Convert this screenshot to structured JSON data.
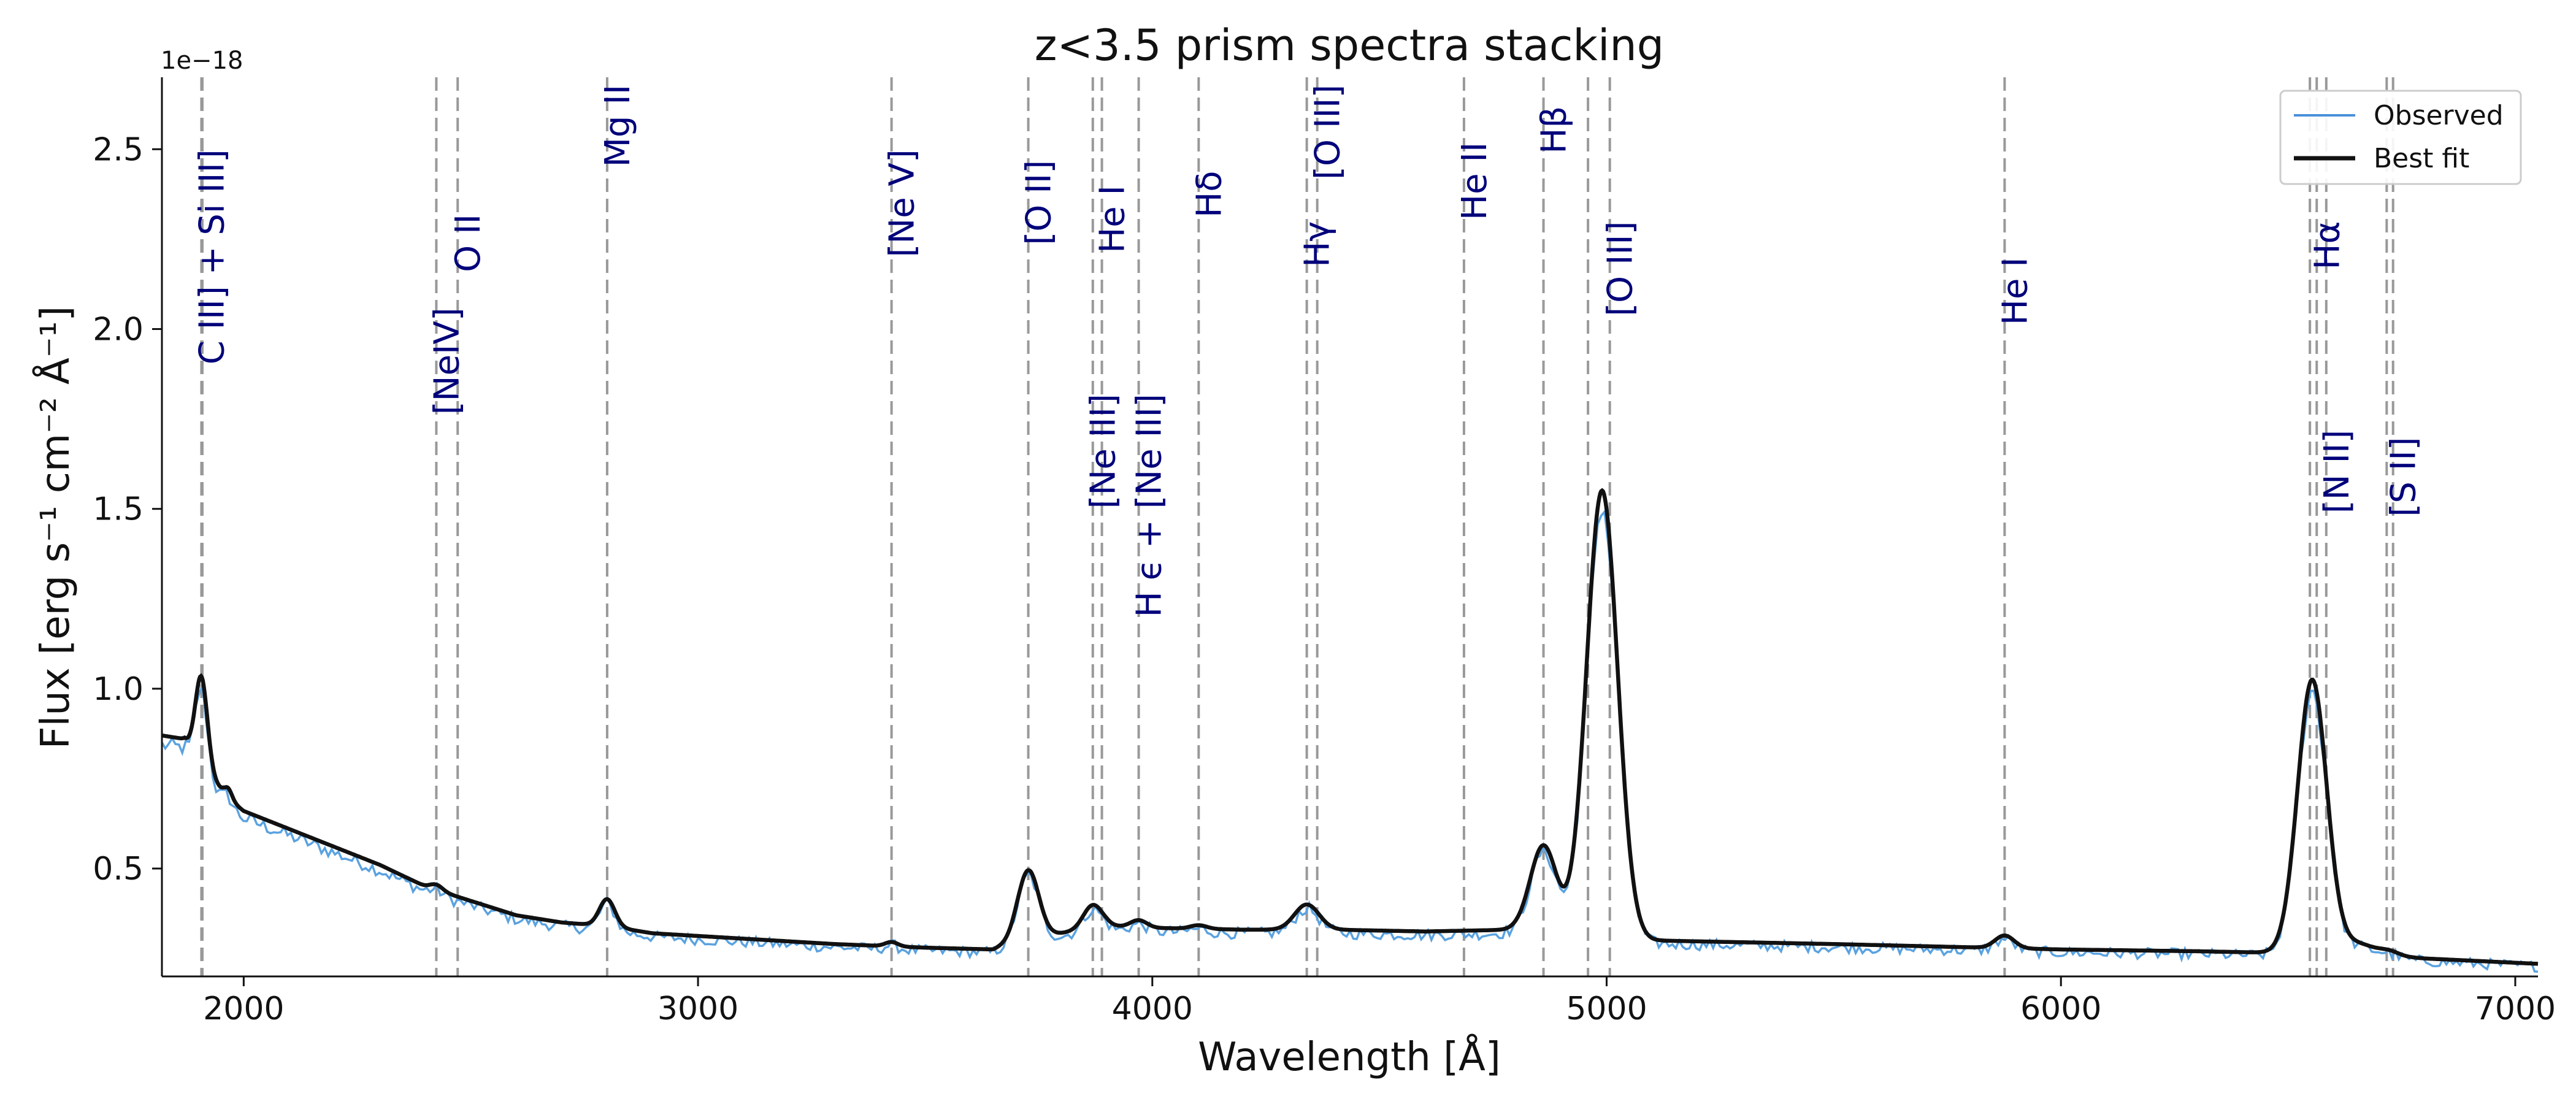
{
  "chart_data": {
    "type": "line",
    "title": "z<3.5 prism spectra stacking",
    "xlabel": "Wavelength [Å]",
    "ylabel": "Flux  [erg s⁻¹ cm⁻² Å⁻¹]",
    "y_multiplier": "1e−18",
    "xlim": [
      1820,
      7050
    ],
    "ylim": [
      0.2,
      2.7
    ],
    "x_ticks": [
      2000,
      3000,
      4000,
      5000,
      6000,
      7000
    ],
    "x_tick_labels": [
      "2000",
      "3000",
      "4000",
      "5000",
      "6000",
      "7000"
    ],
    "y_ticks": [
      0.5,
      1.0,
      1.5,
      2.0,
      2.5
    ],
    "y_tick_labels": [
      "0.5",
      "1.0",
      "1.5",
      "2.0",
      "2.5"
    ],
    "legend": {
      "position": "top-right",
      "entries": [
        {
          "name": "Observed",
          "color": "#4a90d9"
        },
        {
          "name": "Best fit",
          "color": "#111111"
        }
      ]
    },
    "emission_lines": [
      {
        "wavelength": 1907,
        "label": "C III] + Si III]",
        "label_anchor": "top",
        "label_y": 2.5
      },
      {
        "wavelength": 1909,
        "label": "",
        "label_anchor": "top",
        "label_y": 2.5
      },
      {
        "wavelength": 2424,
        "label": "[NeIV]",
        "label_anchor": "top",
        "label_y": 2.06
      },
      {
        "wavelength": 2471,
        "label": "O II",
        "label_anchor": "top",
        "label_y": 2.32
      },
      {
        "wavelength": 2800,
        "label": "Mg II",
        "label_anchor": "top",
        "label_y": 2.68
      },
      {
        "wavelength": 3426,
        "label": "[Ne V]",
        "label_anchor": "top",
        "label_y": 2.5
      },
      {
        "wavelength": 3727,
        "label": "[O II]",
        "label_anchor": "top",
        "label_y": 2.47
      },
      {
        "wavelength": 3869,
        "label": "[Ne III]",
        "label_anchor": "top",
        "label_y": 1.82
      },
      {
        "wavelength": 3889,
        "label": "He I",
        "label_anchor": "top",
        "label_y": 2.4
      },
      {
        "wavelength": 3970,
        "label": "H ϵ + [Ne III]",
        "label_anchor": "top",
        "label_y": 1.82
      },
      {
        "wavelength": 4102,
        "label": "Hδ",
        "label_anchor": "top",
        "label_y": 2.44
      },
      {
        "wavelength": 4340,
        "label": "Hγ",
        "label_anchor": "top",
        "label_y": 2.3
      },
      {
        "wavelength": 4363,
        "label": "[O III]",
        "label_anchor": "top",
        "label_y": 2.68
      },
      {
        "wavelength": 4686,
        "label": "He II",
        "label_anchor": "top",
        "label_y": 2.52
      },
      {
        "wavelength": 4861,
        "label": "Hβ",
        "label_anchor": "top",
        "label_y": 2.62
      },
      {
        "wavelength": 4959,
        "label": "",
        "label_anchor": "top",
        "label_y": 2.3
      },
      {
        "wavelength": 5007,
        "label": "[O III]",
        "label_anchor": "top",
        "label_y": 2.3
      },
      {
        "wavelength": 5876,
        "label": "He I",
        "label_anchor": "top",
        "label_y": 2.2
      },
      {
        "wavelength": 6548,
        "label": "",
        "label_anchor": "top",
        "label_y": 2.3
      },
      {
        "wavelength": 6563,
        "label": "Hα",
        "label_anchor": "top",
        "label_y": 2.3
      },
      {
        "wavelength": 6584,
        "label": "[N II]",
        "label_anchor": "top",
        "label_y": 1.72
      },
      {
        "wavelength": 6717,
        "label": "",
        "label_anchor": "top",
        "label_y": 1.7
      },
      {
        "wavelength": 6731,
        "label": "[S II]",
        "label_anchor": "top",
        "label_y": 1.7
      }
    ],
    "continuum_anchors": [
      [
        1820,
        0.87
      ],
      [
        1870,
        0.86
      ],
      [
        1960,
        0.7
      ],
      [
        2000,
        0.66
      ],
      [
        2100,
        0.61
      ],
      [
        2200,
        0.56
      ],
      [
        2300,
        0.51
      ],
      [
        2400,
        0.45
      ],
      [
        2500,
        0.41
      ],
      [
        2600,
        0.37
      ],
      [
        2700,
        0.35
      ],
      [
        2800,
        0.34
      ],
      [
        2900,
        0.32
      ],
      [
        3100,
        0.305
      ],
      [
        3300,
        0.29
      ],
      [
        3500,
        0.28
      ],
      [
        3650,
        0.275
      ],
      [
        3700,
        0.3
      ],
      [
        3900,
        0.34
      ],
      [
        4000,
        0.335
      ],
      [
        4200,
        0.33
      ],
      [
        4400,
        0.33
      ],
      [
        4600,
        0.325
      ],
      [
        4800,
        0.33
      ],
      [
        5100,
        0.3
      ],
      [
        5500,
        0.29
      ],
      [
        6000,
        0.275
      ],
      [
        6300,
        0.27
      ],
      [
        6500,
        0.265
      ],
      [
        6700,
        0.26
      ],
      [
        6800,
        0.25
      ],
      [
        7050,
        0.235
      ]
    ],
    "emission_components": [
      {
        "center": 1907,
        "amplitude": 0.24,
        "sigma": 13
      },
      {
        "center": 1965,
        "amplitude": 0.03,
        "sigma": 9
      },
      {
        "center": 2424,
        "amplitude": 0.015,
        "sigma": 14
      },
      {
        "center": 2800,
        "amplitude": 0.075,
        "sigma": 17
      },
      {
        "center": 3426,
        "amplitude": 0.012,
        "sigma": 14
      },
      {
        "center": 3727,
        "amplitude": 0.19,
        "sigma": 23
      },
      {
        "center": 3869,
        "amplitude": 0.065,
        "sigma": 21
      },
      {
        "center": 3970,
        "amplitude": 0.02,
        "sigma": 18
      },
      {
        "center": 4102,
        "amplitude": 0.01,
        "sigma": 18
      },
      {
        "center": 4340,
        "amplitude": 0.07,
        "sigma": 27
      },
      {
        "center": 4861,
        "amplitude": 0.24,
        "sigma": 29
      },
      {
        "center": 4990,
        "amplitude": 1.24,
        "sigma": 34
      },
      {
        "center": 5876,
        "amplitude": 0.035,
        "sigma": 21
      },
      {
        "center": 6553,
        "amplitude": 0.76,
        "sigma": 32
      },
      {
        "center": 6650,
        "amplitude": 0.03,
        "sigma": 40
      },
      {
        "center": 6724,
        "amplitude": 0.01,
        "sigma": 20
      }
    ],
    "observed_noise": {
      "points": 700,
      "amplitude": 0.02
    }
  },
  "colors": {
    "observed": "#5aa2e0",
    "best_fit": "#111111",
    "marker_line": "#999999",
    "line_label": "#00007a",
    "axis": "#111111"
  }
}
